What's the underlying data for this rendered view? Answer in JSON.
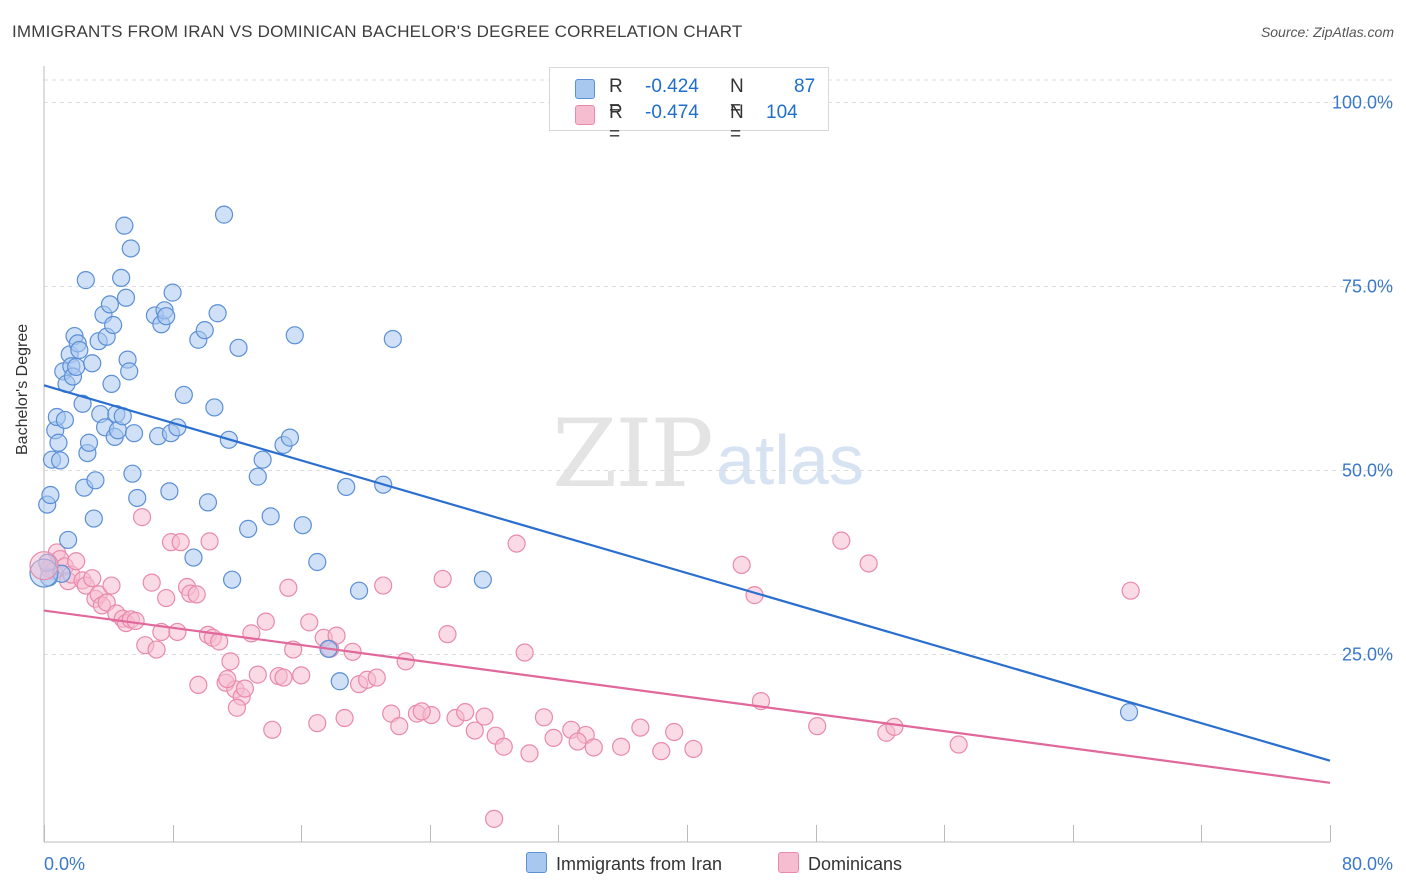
{
  "title": "IMMIGRANTS FROM IRAN VS DOMINICAN BACHELOR'S DEGREE CORRELATION CHART",
  "source": "Source: ZipAtlas.com",
  "watermark": {
    "zip": "ZIP",
    "atlas": "atlas"
  },
  "stats": {
    "iran": {
      "r_label": "R =",
      "r_value": "-0.424",
      "n_label": "N =",
      "n_value": "87"
    },
    "dominican": {
      "r_label": "R =",
      "r_value": "-0.474",
      "n_label": "N =",
      "n_value": "104"
    }
  },
  "legend": {
    "iran": "Immigrants from Iran",
    "dominican": "Dominicans"
  },
  "colors": {
    "iran_fill": "#a9c8f0",
    "iran_stroke": "#5b8fd6",
    "iran_line": "#2a6fcf",
    "dom_fill": "#f6bccf",
    "dom_stroke": "#e98aab",
    "dom_line": "#e0689a",
    "tick_label": "#3a78c9",
    "grid": "#dddddd"
  },
  "chart_data": {
    "type": "scatter",
    "title": "IMMIGRANTS FROM IRAN VS DOMINICAN BACHELOR'S DEGREE CORRELATION CHART",
    "xlabel": "",
    "ylabel": "Bachelor's Degree",
    "xlim": [
      0,
      80
    ],
    "ylim": [
      0,
      105
    ],
    "x_tick_labels": [
      "0.0%",
      "80.0%"
    ],
    "y_ticks": [
      25,
      50,
      75,
      100
    ],
    "y_tick_labels": [
      "25.0%",
      "50.0%",
      "75.0%",
      "100.0%"
    ],
    "grid": true,
    "legend_position": "bottom-center",
    "series": [
      {
        "name": "Immigrants from Iran",
        "trend": {
          "x": [
            0,
            80
          ],
          "y": [
            61.5,
            10.5
          ]
        },
        "points": [
          [
            0.2,
            45.3
          ],
          [
            0.3,
            35.4
          ],
          [
            0.4,
            46.6
          ],
          [
            0.5,
            51.4
          ],
          [
            0.7,
            55.4
          ],
          [
            0.8,
            57.2
          ],
          [
            0.9,
            53.7
          ],
          [
            1.0,
            51.3
          ],
          [
            1.2,
            63.4
          ],
          [
            1.3,
            56.8
          ],
          [
            1.4,
            61.7
          ],
          [
            1.5,
            40.5
          ],
          [
            1.6,
            65.7
          ],
          [
            1.7,
            64.1
          ],
          [
            1.8,
            62.7
          ],
          [
            1.9,
            68.2
          ],
          [
            2.0,
            64.0
          ],
          [
            2.1,
            67.2
          ],
          [
            2.2,
            66.3
          ],
          [
            2.4,
            59.0
          ],
          [
            2.5,
            47.6
          ],
          [
            2.6,
            75.8
          ],
          [
            2.7,
            52.3
          ],
          [
            2.8,
            53.7
          ],
          [
            3.0,
            64.5
          ],
          [
            3.1,
            43.4
          ],
          [
            3.2,
            48.6
          ],
          [
            3.4,
            67.5
          ],
          [
            3.5,
            57.6
          ],
          [
            3.7,
            71.1
          ],
          [
            3.8,
            55.8
          ],
          [
            3.9,
            68.1
          ],
          [
            4.1,
            72.5
          ],
          [
            4.2,
            61.7
          ],
          [
            4.3,
            69.7
          ],
          [
            4.4,
            54.5
          ],
          [
            4.5,
            57.6
          ],
          [
            4.6,
            55.4
          ],
          [
            4.8,
            76.1
          ],
          [
            4.9,
            57.3
          ],
          [
            5.0,
            83.2
          ],
          [
            5.1,
            73.4
          ],
          [
            5.2,
            65.0
          ],
          [
            5.3,
            63.4
          ],
          [
            5.4,
            80.1
          ],
          [
            5.5,
            49.5
          ],
          [
            5.6,
            55.0
          ],
          [
            5.8,
            46.2
          ],
          [
            6.9,
            71.0
          ],
          [
            7.1,
            54.6
          ],
          [
            7.3,
            69.8
          ],
          [
            7.5,
            71.7
          ],
          [
            7.6,
            70.9
          ],
          [
            7.8,
            47.1
          ],
          [
            7.9,
            55.0
          ],
          [
            8.0,
            74.1
          ],
          [
            8.3,
            55.8
          ],
          [
            8.7,
            60.2
          ],
          [
            9.3,
            38.1
          ],
          [
            9.6,
            67.7
          ],
          [
            10.0,
            69.0
          ],
          [
            10.2,
            45.6
          ],
          [
            10.6,
            58.5
          ],
          [
            10.8,
            71.3
          ],
          [
            11.2,
            84.7
          ],
          [
            11.5,
            54.1
          ],
          [
            11.7,
            35.1
          ],
          [
            12.1,
            66.6
          ],
          [
            12.7,
            42.0
          ],
          [
            13.3,
            49.1
          ],
          [
            13.6,
            51.4
          ],
          [
            14.1,
            43.7
          ],
          [
            14.9,
            53.4
          ],
          [
            15.3,
            54.4
          ],
          [
            15.6,
            68.3
          ],
          [
            16.1,
            42.5
          ],
          [
            17.0,
            37.5
          ],
          [
            17.7,
            25.7
          ],
          [
            18.4,
            21.3
          ],
          [
            18.8,
            47.7
          ],
          [
            19.6,
            33.6
          ],
          [
            21.1,
            48.0
          ],
          [
            21.7,
            67.8
          ],
          [
            27.3,
            35.1
          ],
          [
            67.5,
            17.1
          ],
          [
            0.2,
            37.4
          ],
          [
            1.1,
            35.9
          ]
        ]
      },
      {
        "name": "Dominicans",
        "trend": {
          "x": [
            0,
            80
          ],
          "y": [
            30.9,
            7.5
          ]
        },
        "points": [
          [
            0.3,
            36.6
          ],
          [
            0.6,
            36.3
          ],
          [
            0.8,
            38.8
          ],
          [
            1.0,
            37.9
          ],
          [
            1.3,
            36.9
          ],
          [
            1.5,
            34.9
          ],
          [
            1.7,
            35.8
          ],
          [
            2.0,
            37.6
          ],
          [
            2.4,
            35.0
          ],
          [
            2.6,
            34.3
          ],
          [
            3.0,
            35.3
          ],
          [
            3.2,
            32.5
          ],
          [
            3.4,
            33.1
          ],
          [
            3.6,
            31.6
          ],
          [
            3.9,
            32.0
          ],
          [
            4.2,
            34.3
          ],
          [
            4.5,
            30.5
          ],
          [
            4.9,
            29.8
          ],
          [
            5.1,
            29.2
          ],
          [
            5.4,
            29.7
          ],
          [
            5.7,
            29.5
          ],
          [
            6.1,
            43.6
          ],
          [
            6.3,
            26.2
          ],
          [
            6.7,
            34.7
          ],
          [
            7.0,
            25.6
          ],
          [
            7.3,
            28.0
          ],
          [
            7.6,
            32.6
          ],
          [
            7.9,
            40.2
          ],
          [
            8.3,
            28.0
          ],
          [
            8.5,
            40.2
          ],
          [
            8.9,
            34.1
          ],
          [
            9.1,
            33.2
          ],
          [
            9.6,
            20.8
          ],
          [
            10.2,
            27.6
          ],
          [
            10.5,
            27.2
          ],
          [
            10.9,
            26.7
          ],
          [
            11.3,
            21.1
          ],
          [
            11.6,
            24.0
          ],
          [
            11.9,
            20.2
          ],
          [
            12.3,
            19.2
          ],
          [
            12.5,
            20.3
          ],
          [
            12.9,
            27.8
          ],
          [
            13.3,
            22.2
          ],
          [
            13.8,
            29.4
          ],
          [
            14.2,
            14.7
          ],
          [
            14.6,
            22.0
          ],
          [
            14.9,
            21.8
          ],
          [
            15.2,
            34.0
          ],
          [
            15.5,
            25.6
          ],
          [
            16.0,
            22.1
          ],
          [
            16.5,
            29.3
          ],
          [
            17.0,
            15.6
          ],
          [
            17.4,
            27.2
          ],
          [
            17.8,
            25.7
          ],
          [
            18.2,
            27.5
          ],
          [
            18.7,
            16.3
          ],
          [
            19.2,
            25.3
          ],
          [
            19.6,
            20.9
          ],
          [
            20.1,
            21.5
          ],
          [
            20.7,
            21.8
          ],
          [
            21.1,
            34.3
          ],
          [
            21.6,
            16.9
          ],
          [
            22.1,
            15.2
          ],
          [
            22.5,
            24.0
          ],
          [
            23.2,
            16.9
          ],
          [
            24.1,
            16.7
          ],
          [
            24.8,
            35.2
          ],
          [
            25.1,
            27.7
          ],
          [
            25.6,
            16.3
          ],
          [
            26.2,
            17.1
          ],
          [
            26.8,
            14.6
          ],
          [
            27.4,
            16.5
          ],
          [
            28.1,
            13.9
          ],
          [
            28.6,
            12.4
          ],
          [
            29.4,
            40.0
          ],
          [
            29.9,
            25.2
          ],
          [
            30.2,
            11.5
          ],
          [
            31.1,
            16.4
          ],
          [
            31.7,
            13.6
          ],
          [
            32.8,
            14.7
          ],
          [
            33.7,
            14.0
          ],
          [
            34.2,
            12.3
          ],
          [
            35.9,
            12.4
          ],
          [
            37.1,
            15.0
          ],
          [
            38.4,
            11.8
          ],
          [
            39.2,
            14.4
          ],
          [
            40.4,
            12.1
          ],
          [
            43.4,
            37.1
          ],
          [
            44.2,
            33.0
          ],
          [
            44.6,
            18.6
          ],
          [
            48.1,
            15.2
          ],
          [
            49.6,
            40.4
          ],
          [
            51.3,
            37.3
          ],
          [
            52.4,
            14.3
          ],
          [
            52.9,
            15.1
          ],
          [
            56.9,
            12.7
          ],
          [
            67.6,
            33.6
          ],
          [
            10.3,
            40.3
          ],
          [
            11.4,
            21.6
          ],
          [
            9.5,
            33.1
          ],
          [
            28.0,
            2.6
          ],
          [
            23.5,
            17.2
          ],
          [
            33.2,
            13.1
          ],
          [
            12.0,
            17.7
          ]
        ]
      }
    ]
  }
}
